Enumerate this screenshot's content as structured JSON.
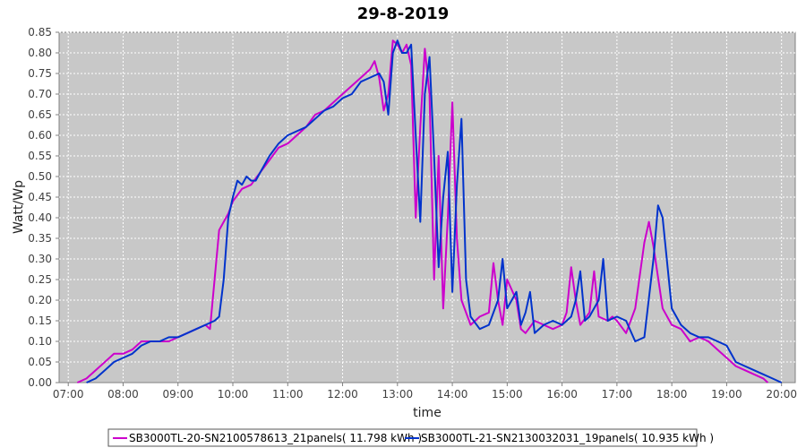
{
  "chart_data": {
    "type": "line",
    "title": "29-8-2019",
    "xlabel": "time",
    "ylabel": "Watt/Wp",
    "xlim": [
      "07:00",
      "20:00"
    ],
    "ylim": [
      0,
      0.85
    ],
    "x_ticks": [
      "07:00",
      "08:00",
      "09:00",
      "10:00",
      "11:00",
      "12:00",
      "13:00",
      "14:00",
      "15:00",
      "16:00",
      "17:00",
      "18:00",
      "19:00",
      "20:00"
    ],
    "y_ticks": [
      "0.00",
      "0.05",
      "0.10",
      "0.15",
      "0.20",
      "0.25",
      "0.30",
      "0.35",
      "0.40",
      "0.45",
      "0.50",
      "0.55",
      "0.60",
      "0.65",
      "0.70",
      "0.75",
      "0.80",
      "0.85"
    ],
    "grid": true,
    "legend_position": "bottom",
    "series": [
      {
        "name": "SB3000TL-20-SN2100578613_21panels( 11.798 kWh )",
        "color": "#cc00cc",
        "points": [
          [
            "07:10",
            0.0
          ],
          [
            "07:20",
            0.01
          ],
          [
            "07:30",
            0.03
          ],
          [
            "07:40",
            0.05
          ],
          [
            "07:50",
            0.07
          ],
          [
            "08:00",
            0.07
          ],
          [
            "08:10",
            0.08
          ],
          [
            "08:20",
            0.1
          ],
          [
            "08:30",
            0.1
          ],
          [
            "08:40",
            0.1
          ],
          [
            "08:50",
            0.1
          ],
          [
            "09:00",
            0.11
          ],
          [
            "09:10",
            0.12
          ],
          [
            "09:20",
            0.13
          ],
          [
            "09:30",
            0.14
          ],
          [
            "09:35",
            0.13
          ],
          [
            "09:40",
            0.25
          ],
          [
            "09:45",
            0.37
          ],
          [
            "09:50",
            0.39
          ],
          [
            "09:55",
            0.41
          ],
          [
            "10:00",
            0.44
          ],
          [
            "10:10",
            0.47
          ],
          [
            "10:20",
            0.48
          ],
          [
            "10:30",
            0.51
          ],
          [
            "10:40",
            0.54
          ],
          [
            "10:50",
            0.57
          ],
          [
            "11:00",
            0.58
          ],
          [
            "11:10",
            0.6
          ],
          [
            "11:20",
            0.62
          ],
          [
            "11:30",
            0.65
          ],
          [
            "11:40",
            0.66
          ],
          [
            "11:50",
            0.68
          ],
          [
            "12:00",
            0.7
          ],
          [
            "12:10",
            0.72
          ],
          [
            "12:20",
            0.74
          ],
          [
            "12:30",
            0.76
          ],
          [
            "12:35",
            0.78
          ],
          [
            "12:40",
            0.74
          ],
          [
            "12:45",
            0.66
          ],
          [
            "12:50",
            0.7
          ],
          [
            "12:55",
            0.83
          ],
          [
            "13:00",
            0.82
          ],
          [
            "13:05",
            0.8
          ],
          [
            "13:10",
            0.82
          ],
          [
            "13:15",
            0.77
          ],
          [
            "13:20",
            0.4
          ],
          [
            "13:25",
            0.62
          ],
          [
            "13:30",
            0.81
          ],
          [
            "13:35",
            0.7
          ],
          [
            "13:40",
            0.25
          ],
          [
            "13:45",
            0.55
          ],
          [
            "13:50",
            0.18
          ],
          [
            "13:55",
            0.4
          ],
          [
            "14:00",
            0.68
          ],
          [
            "14:05",
            0.35
          ],
          [
            "14:10",
            0.2
          ],
          [
            "14:20",
            0.14
          ],
          [
            "14:30",
            0.16
          ],
          [
            "14:40",
            0.17
          ],
          [
            "14:45",
            0.29
          ],
          [
            "14:50",
            0.2
          ],
          [
            "14:55",
            0.14
          ],
          [
            "15:00",
            0.25
          ],
          [
            "15:10",
            0.2
          ],
          [
            "15:15",
            0.13
          ],
          [
            "15:20",
            0.12
          ],
          [
            "15:30",
            0.15
          ],
          [
            "15:40",
            0.14
          ],
          [
            "15:50",
            0.13
          ],
          [
            "16:00",
            0.14
          ],
          [
            "16:05",
            0.17
          ],
          [
            "16:10",
            0.28
          ],
          [
            "16:15",
            0.2
          ],
          [
            "16:20",
            0.14
          ],
          [
            "16:30",
            0.17
          ],
          [
            "16:35",
            0.27
          ],
          [
            "16:40",
            0.16
          ],
          [
            "16:50",
            0.15
          ],
          [
            "16:55",
            0.16
          ],
          [
            "17:00",
            0.15
          ],
          [
            "17:10",
            0.12
          ],
          [
            "17:20",
            0.18
          ],
          [
            "17:30",
            0.34
          ],
          [
            "17:35",
            0.39
          ],
          [
            "17:40",
            0.33
          ],
          [
            "17:50",
            0.18
          ],
          [
            "18:00",
            0.14
          ],
          [
            "18:10",
            0.13
          ],
          [
            "18:20",
            0.1
          ],
          [
            "18:30",
            0.11
          ],
          [
            "18:40",
            0.1
          ],
          [
            "18:50",
            0.08
          ],
          [
            "19:00",
            0.06
          ],
          [
            "19:10",
            0.04
          ],
          [
            "19:20",
            0.03
          ],
          [
            "19:30",
            0.02
          ],
          [
            "19:40",
            0.01
          ],
          [
            "19:45",
            0.0
          ]
        ]
      },
      {
        "name": "SB3000TL-21-SN2130032031_19panels( 10.935 kWh )",
        "color": "#0033cc",
        "points": [
          [
            "07:20",
            0.0
          ],
          [
            "07:30",
            0.01
          ],
          [
            "07:40",
            0.03
          ],
          [
            "07:50",
            0.05
          ],
          [
            "08:00",
            0.06
          ],
          [
            "08:10",
            0.07
          ],
          [
            "08:20",
            0.09
          ],
          [
            "08:30",
            0.1
          ],
          [
            "08:40",
            0.1
          ],
          [
            "08:50",
            0.11
          ],
          [
            "09:00",
            0.11
          ],
          [
            "09:10",
            0.12
          ],
          [
            "09:20",
            0.13
          ],
          [
            "09:30",
            0.14
          ],
          [
            "09:40",
            0.15
          ],
          [
            "09:45",
            0.16
          ],
          [
            "09:50",
            0.25
          ],
          [
            "09:55",
            0.4
          ],
          [
            "10:00",
            0.45
          ],
          [
            "10:05",
            0.49
          ],
          [
            "10:10",
            0.48
          ],
          [
            "10:15",
            0.5
          ],
          [
            "10:20",
            0.49
          ],
          [
            "10:25",
            0.49
          ],
          [
            "10:30",
            0.51
          ],
          [
            "10:40",
            0.55
          ],
          [
            "10:50",
            0.58
          ],
          [
            "11:00",
            0.6
          ],
          [
            "11:10",
            0.61
          ],
          [
            "11:20",
            0.62
          ],
          [
            "11:30",
            0.64
          ],
          [
            "11:40",
            0.66
          ],
          [
            "11:50",
            0.67
          ],
          [
            "12:00",
            0.69
          ],
          [
            "12:10",
            0.7
          ],
          [
            "12:20",
            0.73
          ],
          [
            "12:30",
            0.74
          ],
          [
            "12:40",
            0.75
          ],
          [
            "12:45",
            0.73
          ],
          [
            "12:50",
            0.65
          ],
          [
            "12:55",
            0.8
          ],
          [
            "13:00",
            0.83
          ],
          [
            "13:05",
            0.8
          ],
          [
            "13:10",
            0.8
          ],
          [
            "13:15",
            0.82
          ],
          [
            "13:20",
            0.6
          ],
          [
            "13:25",
            0.39
          ],
          [
            "13:30",
            0.7
          ],
          [
            "13:35",
            0.79
          ],
          [
            "13:40",
            0.55
          ],
          [
            "13:45",
            0.28
          ],
          [
            "13:50",
            0.45
          ],
          [
            "13:55",
            0.56
          ],
          [
            "14:00",
            0.22
          ],
          [
            "14:05",
            0.48
          ],
          [
            "14:10",
            0.64
          ],
          [
            "14:15",
            0.25
          ],
          [
            "14:20",
            0.16
          ],
          [
            "14:30",
            0.13
          ],
          [
            "14:40",
            0.14
          ],
          [
            "14:50",
            0.2
          ],
          [
            "14:55",
            0.3
          ],
          [
            "15:00",
            0.18
          ],
          [
            "15:10",
            0.22
          ],
          [
            "15:15",
            0.14
          ],
          [
            "15:20",
            0.17
          ],
          [
            "15:25",
            0.22
          ],
          [
            "15:30",
            0.12
          ],
          [
            "15:40",
            0.14
          ],
          [
            "15:50",
            0.15
          ],
          [
            "16:00",
            0.14
          ],
          [
            "16:10",
            0.16
          ],
          [
            "16:15",
            0.2
          ],
          [
            "16:20",
            0.27
          ],
          [
            "16:25",
            0.15
          ],
          [
            "16:30",
            0.16
          ],
          [
            "16:40",
            0.2
          ],
          [
            "16:45",
            0.3
          ],
          [
            "16:50",
            0.15
          ],
          [
            "17:00",
            0.16
          ],
          [
            "17:10",
            0.15
          ],
          [
            "17:20",
            0.1
          ],
          [
            "17:30",
            0.11
          ],
          [
            "17:40",
            0.3
          ],
          [
            "17:45",
            0.43
          ],
          [
            "17:50",
            0.4
          ],
          [
            "18:00",
            0.18
          ],
          [
            "18:10",
            0.14
          ],
          [
            "18:20",
            0.12
          ],
          [
            "18:30",
            0.11
          ],
          [
            "18:40",
            0.11
          ],
          [
            "18:50",
            0.1
          ],
          [
            "19:00",
            0.09
          ],
          [
            "19:10",
            0.05
          ],
          [
            "19:20",
            0.04
          ],
          [
            "19:30",
            0.03
          ],
          [
            "19:40",
            0.02
          ],
          [
            "19:50",
            0.01
          ],
          [
            "20:00",
            0.0
          ]
        ]
      }
    ]
  }
}
